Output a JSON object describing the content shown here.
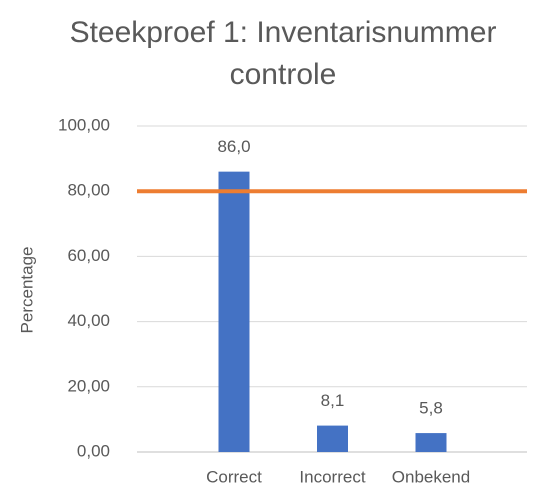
{
  "chart_data": {
    "type": "bar",
    "title": "Steekproef 1: Inventarisnummer controle",
    "y_label": "Percentage",
    "categories": [
      "Correct",
      "Incorrect",
      "Onbekend"
    ],
    "values": [
      86.0,
      8.1,
      5.8
    ],
    "value_labels": [
      "86,0",
      "8,1",
      "5,8"
    ],
    "color": "#4472c4",
    "reference_line": {
      "value": 80,
      "color": "#ed7d31"
    },
    "ylim": [
      0,
      100
    ],
    "yticks": [
      {
        "value": 0,
        "label": "0,00"
      },
      {
        "value": 20,
        "label": "20,00"
      },
      {
        "value": 40,
        "label": "40,00"
      },
      {
        "value": 60,
        "label": "60,00"
      },
      {
        "value": 80,
        "label": "80,00"
      },
      {
        "value": 100,
        "label": "100,00"
      }
    ],
    "grid": true
  }
}
